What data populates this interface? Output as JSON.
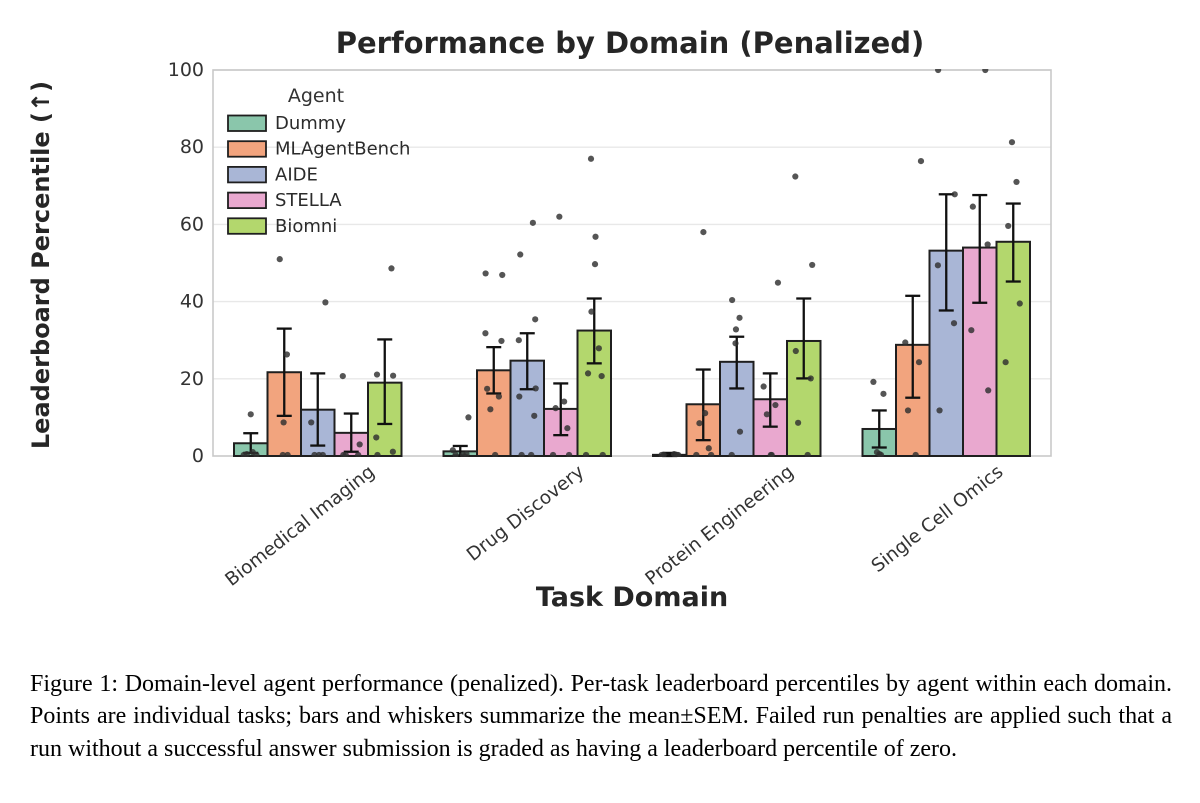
{
  "figure": {
    "title": "Performance by Domain (Penalized)",
    "x_axis_label": "Task Domain",
    "y_axis_label": "Leaderboard Percentile (↑)",
    "legend_title": "Agent",
    "caption": "Figure 1: Domain-level agent performance (penalized). Per-task leaderboard percentiles by agent within each domain. Points are individual tasks; bars and whiskers summarize the mean±SEM. Failed run penalties are applied such that a run without a successful answer submission is graded as having a leaderboard percentile of zero."
  },
  "colors": {
    "background": "#ffffff",
    "grid": "#e8e8e8",
    "spine": "#c9c9c9",
    "bar_edge": "#1f1f1f",
    "error_bar": "#111111",
    "point": "#2f2f2f",
    "tick_text": "#333333",
    "title_text": "#262626"
  },
  "chart_data": {
    "type": "bar",
    "title": "Performance by Domain (Penalized)",
    "xlabel": "Task Domain",
    "ylabel": "Leaderboard Percentile (↑)",
    "ylim": [
      0,
      100
    ],
    "yticks": [
      0,
      20,
      40,
      60,
      80,
      100
    ],
    "grid": true,
    "legend_title": "Agent",
    "legend_position": "upper left",
    "error_bars": "mean±SEM",
    "points_meaning": "individual task leaderboard percentiles",
    "categories": [
      "Biomedical Imaging",
      "Drug Discovery",
      "Protein Engineering",
      "Single Cell Omics"
    ],
    "series": [
      {
        "name": "Dummy",
        "color": "#8ac6ab",
        "values": [
          3.3,
          1.2,
          0.3,
          7.0
        ],
        "err_low": [
          0.8,
          0.1,
          0.0,
          2.2
        ],
        "err_high": [
          5.9,
          2.6,
          0.8,
          11.8
        ],
        "points": [
          [
            10.8,
            1.0,
            0.5,
            0,
            0
          ],
          [
            10.0,
            1.5,
            0.5,
            0,
            0
          ],
          [
            0.5,
            0.3,
            0,
            0,
            0
          ],
          [
            19.2,
            16.1,
            1.0,
            0.5,
            0
          ]
        ]
      },
      {
        "name": "MLAgentBench",
        "color": "#f2a47e",
        "values": [
          21.7,
          22.2,
          13.4,
          28.8
        ],
        "err_low": [
          10.4,
          16.2,
          4.1,
          15.1
        ],
        "err_high": [
          33.0,
          28.2,
          22.4,
          41.5
        ],
        "points": [
          [
            51.0,
            26.3,
            8.7,
            0,
            0
          ],
          [
            47.3,
            46.9,
            31.8,
            29.8,
            17.4,
            15.4,
            12.1,
            0
          ],
          [
            58.0,
            11.1,
            8.5,
            2.0,
            0,
            0
          ],
          [
            76.4,
            29.4,
            24.3,
            11.8,
            0
          ]
        ]
      },
      {
        "name": "AIDE",
        "color": "#a9b6d6",
        "values": [
          12.0,
          24.7,
          24.4,
          53.2
        ],
        "err_low": [
          2.7,
          17.3,
          17.5,
          37.7
        ],
        "err_high": [
          21.4,
          31.8,
          30.9,
          67.8
        ],
        "points": [
          [
            39.8,
            8.7,
            0,
            0,
            0
          ],
          [
            60.4,
            52.2,
            35.4,
            30.0,
            17.5,
            15.4,
            10.4,
            0,
            0
          ],
          [
            40.4,
            35.8,
            32.8,
            29.2,
            6.3,
            0
          ],
          [
            100,
            67.8,
            49.4,
            34.4,
            11.8
          ]
        ]
      },
      {
        "name": "STELLA",
        "color": "#e9a8cf",
        "values": [
          6.0,
          12.2,
          14.7,
          54.0
        ],
        "err_low": [
          1.1,
          5.4,
          7.6,
          39.7
        ],
        "err_high": [
          11.0,
          18.8,
          21.4,
          67.6
        ],
        "points": [
          [
            20.7,
            3.0,
            0,
            0,
            0
          ],
          [
            62.0,
            14.1,
            12.4,
            7.2,
            0,
            0
          ],
          [
            44.9,
            18.0,
            13.2,
            10.8,
            0,
            0
          ],
          [
            100,
            64.6,
            54.8,
            32.6,
            17.0
          ]
        ]
      },
      {
        "name": "Biomni",
        "color": "#b3d76d",
        "values": [
          19.0,
          32.5,
          29.8,
          55.5
        ],
        "err_low": [
          8.3,
          24.0,
          20.1,
          45.2
        ],
        "err_high": [
          30.2,
          40.8,
          40.8,
          65.4
        ],
        "points": [
          [
            48.6,
            21.1,
            20.8,
            4.8,
            1.1,
            0
          ],
          [
            77.0,
            56.8,
            49.7,
            37.4,
            27.9,
            21.4,
            20.7,
            0,
            0
          ],
          [
            72.4,
            49.5,
            27.2,
            20.1,
            8.6,
            0
          ],
          [
            81.3,
            71.0,
            59.6,
            39.5,
            24.3
          ]
        ]
      }
    ]
  }
}
